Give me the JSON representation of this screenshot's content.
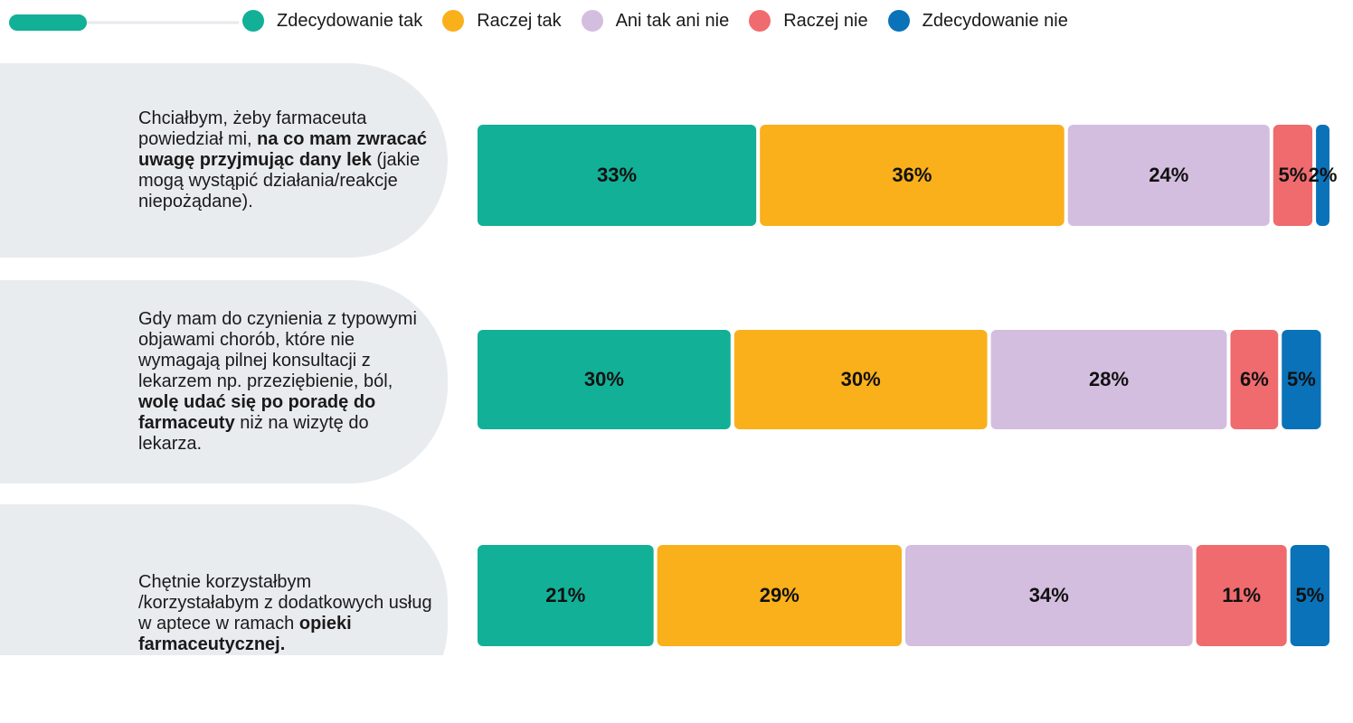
{
  "chart_data": {
    "type": "stacked_barh",
    "categories": [
      [
        {
          "text": "Chciałbym, żeby farmaceuta powiedział mi, ",
          "bold": false
        },
        {
          "text": "na co mam zwracać uwagę przyjmując dany lek",
          "bold": true
        },
        {
          "text": " (jakie mogą wystąpić działania/reakcje niepożądane).",
          "bold": false
        }
      ],
      [
        {
          "text": "Gdy mam do czynienia z typowymi objawami chorób, które nie wymagają pilnej konsultacji z lekarzem np. przeziębienie, ból, ",
          "bold": false
        },
        {
          "text": "wolę udać się po poradę do farmaceuty",
          "bold": true
        },
        {
          "text": " niż na wizytę do lekarza.",
          "bold": false
        }
      ],
      [
        {
          "text": "Chętnie korzystałbym /korzystałabym z dodatkowych usług w aptece w ramach ",
          "bold": false
        },
        {
          "text": "opieki farmaceutycznej.",
          "bold": true
        }
      ]
    ],
    "series": [
      {
        "name": "Zdecydowanie tak",
        "color": "#12b097",
        "values": [
          33,
          30,
          21
        ],
        "value_labels": [
          "33%",
          "30%",
          "21%"
        ]
      },
      {
        "name": "Raczej tak",
        "color": "#f9b01b",
        "values": [
          36,
          30,
          29
        ],
        "value_labels": [
          "36%",
          "30%",
          "29%"
        ]
      },
      {
        "name": "Ani tak ani nie",
        "color": "#d4bedf",
        "values": [
          24,
          28,
          34
        ],
        "value_labels": [
          "24%",
          "28%",
          "34%"
        ]
      },
      {
        "name": "Raczej nie",
        "color": "#ef6b6e",
        "values": [
          5,
          6,
          11
        ],
        "value_labels": [
          "5%",
          "6%",
          "11%"
        ]
      },
      {
        "name": "Zdecydowanie nie",
        "color": "#0a72b8",
        "values": [
          2,
          5,
          5
        ],
        "value_labels": [
          "2%",
          "5%",
          "5%"
        ]
      }
    ],
    "xlim": [
      0,
      100
    ]
  }
}
